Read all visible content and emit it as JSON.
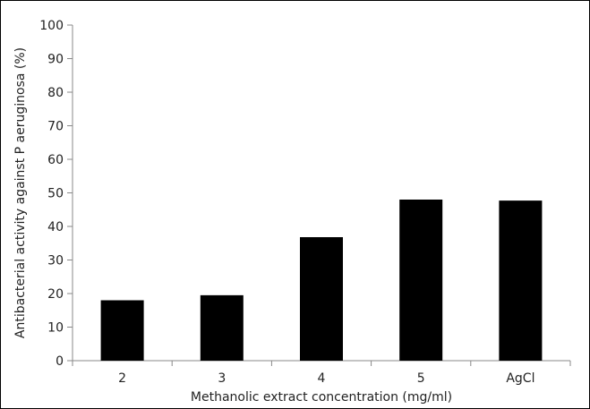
{
  "chart_data": {
    "type": "bar",
    "title": "",
    "xlabel": "Methanolic extract concentration (mg/ml)",
    "ylabel": "Antibacterial activity  against P aeruginosa (%)",
    "categories": [
      "2",
      "3",
      "4",
      "5",
      "AgCl"
    ],
    "values": [
      18,
      19.5,
      36.8,
      48,
      47.7
    ],
    "ylim": [
      0,
      100
    ],
    "yticks": [
      "0",
      "10",
      "20",
      "30",
      "40",
      "50",
      "60",
      "70",
      "80",
      "90",
      "100"
    ],
    "bar_color": "#000000",
    "axis_color": "#888888",
    "grid": false,
    "legend": "none"
  }
}
